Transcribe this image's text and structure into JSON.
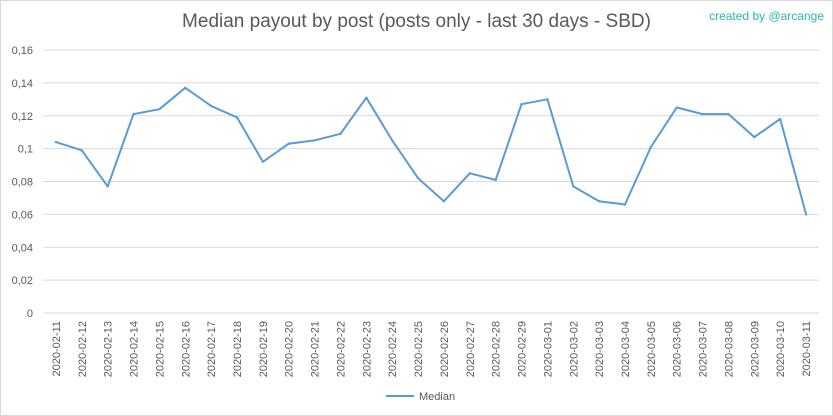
{
  "chart_data": {
    "type": "line",
    "title": "Median payout by post (posts only - last 30 days - SBD)",
    "credit": "created by @arcange",
    "xlabel": "",
    "ylabel": "",
    "ylim": [
      0,
      0.16
    ],
    "y_ticks": [
      0,
      0.02,
      0.04,
      0.06,
      0.08,
      0.1,
      0.12,
      0.14,
      0.16
    ],
    "y_tick_labels": [
      "0",
      "0,02",
      "0,04",
      "0,06",
      "0,08",
      "0,1",
      "0,12",
      "0,14",
      "0,16"
    ],
    "grid": true,
    "legend_position": "bottom",
    "series_color": "#5b9bd5",
    "categories": [
      "2020-02-11",
      "2020-02-12",
      "2020-02-13",
      "2020-02-14",
      "2020-02-15",
      "2020-02-16",
      "2020-02-17",
      "2020-02-18",
      "2020-02-19",
      "2020-02-20",
      "2020-02-21",
      "2020-02-22",
      "2020-02-23",
      "2020-02-24",
      "2020-02-25",
      "2020-02-26",
      "2020-02-27",
      "2020-02-28",
      "2020-02-29",
      "2020-03-01",
      "2020-03-02",
      "2020-03-03",
      "2020-03-04",
      "2020-03-05",
      "2020-03-06",
      "2020-03-07",
      "2020-03-08",
      "2020-03-09",
      "2020-03-10",
      "2020-03-11"
    ],
    "series": [
      {
        "name": "Median",
        "values": [
          0.104,
          0.099,
          0.077,
          0.121,
          0.124,
          0.137,
          0.126,
          0.119,
          0.092,
          0.103,
          0.105,
          0.109,
          0.131,
          0.105,
          0.082,
          0.068,
          0.085,
          0.081,
          0.127,
          0.13,
          0.077,
          0.068,
          0.066,
          0.101,
          0.125,
          0.121,
          0.121,
          0.107,
          0.118,
          0.06
        ]
      }
    ]
  }
}
